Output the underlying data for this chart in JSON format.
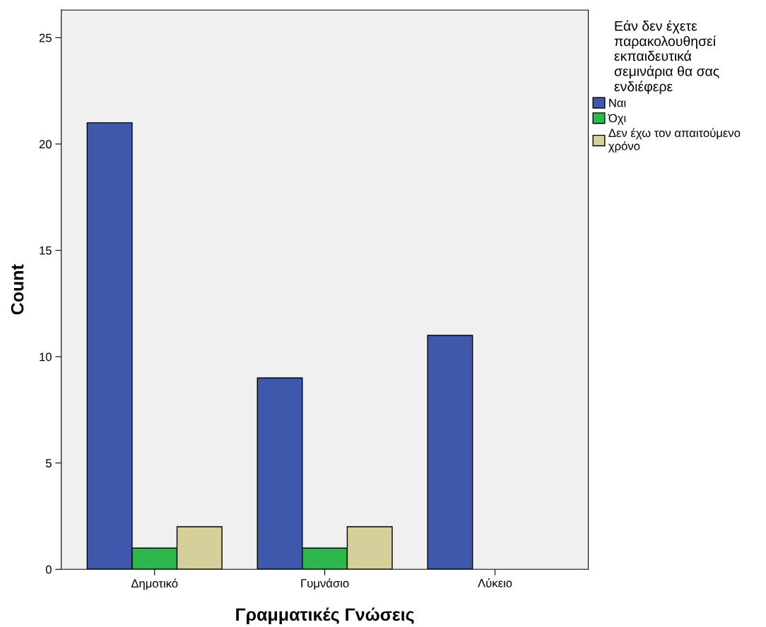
{
  "chart_data": {
    "type": "bar",
    "xlabel": "Γραμματικές Γνώσεις",
    "ylabel": "Count",
    "categories": [
      "Δημοτικό",
      "Γυμνάσιο",
      "Λύκειο"
    ],
    "series": [
      {
        "name": "Ναι",
        "color": "#3e58ac",
        "values": [
          21,
          9,
          11
        ]
      },
      {
        "name": "Όχι",
        "color": "#2eb84b",
        "values": [
          1,
          1,
          null
        ]
      },
      {
        "name": "Δεν έχω τον απαιτούμενο\nχρόνο",
        "color": "#d5d09b",
        "values": [
          2,
          2,
          null
        ]
      }
    ],
    "legend_title": "Εάν δεν έχετε\nπαρακολουθησεί\nεκπαιδευτικά\nσεμινάρια θα σας\nενδιέφερε",
    "legend": "right",
    "grid": false,
    "ylim": [
      0,
      26.3
    ],
    "yticks": [
      0,
      5,
      10,
      15,
      20,
      25
    ]
  }
}
